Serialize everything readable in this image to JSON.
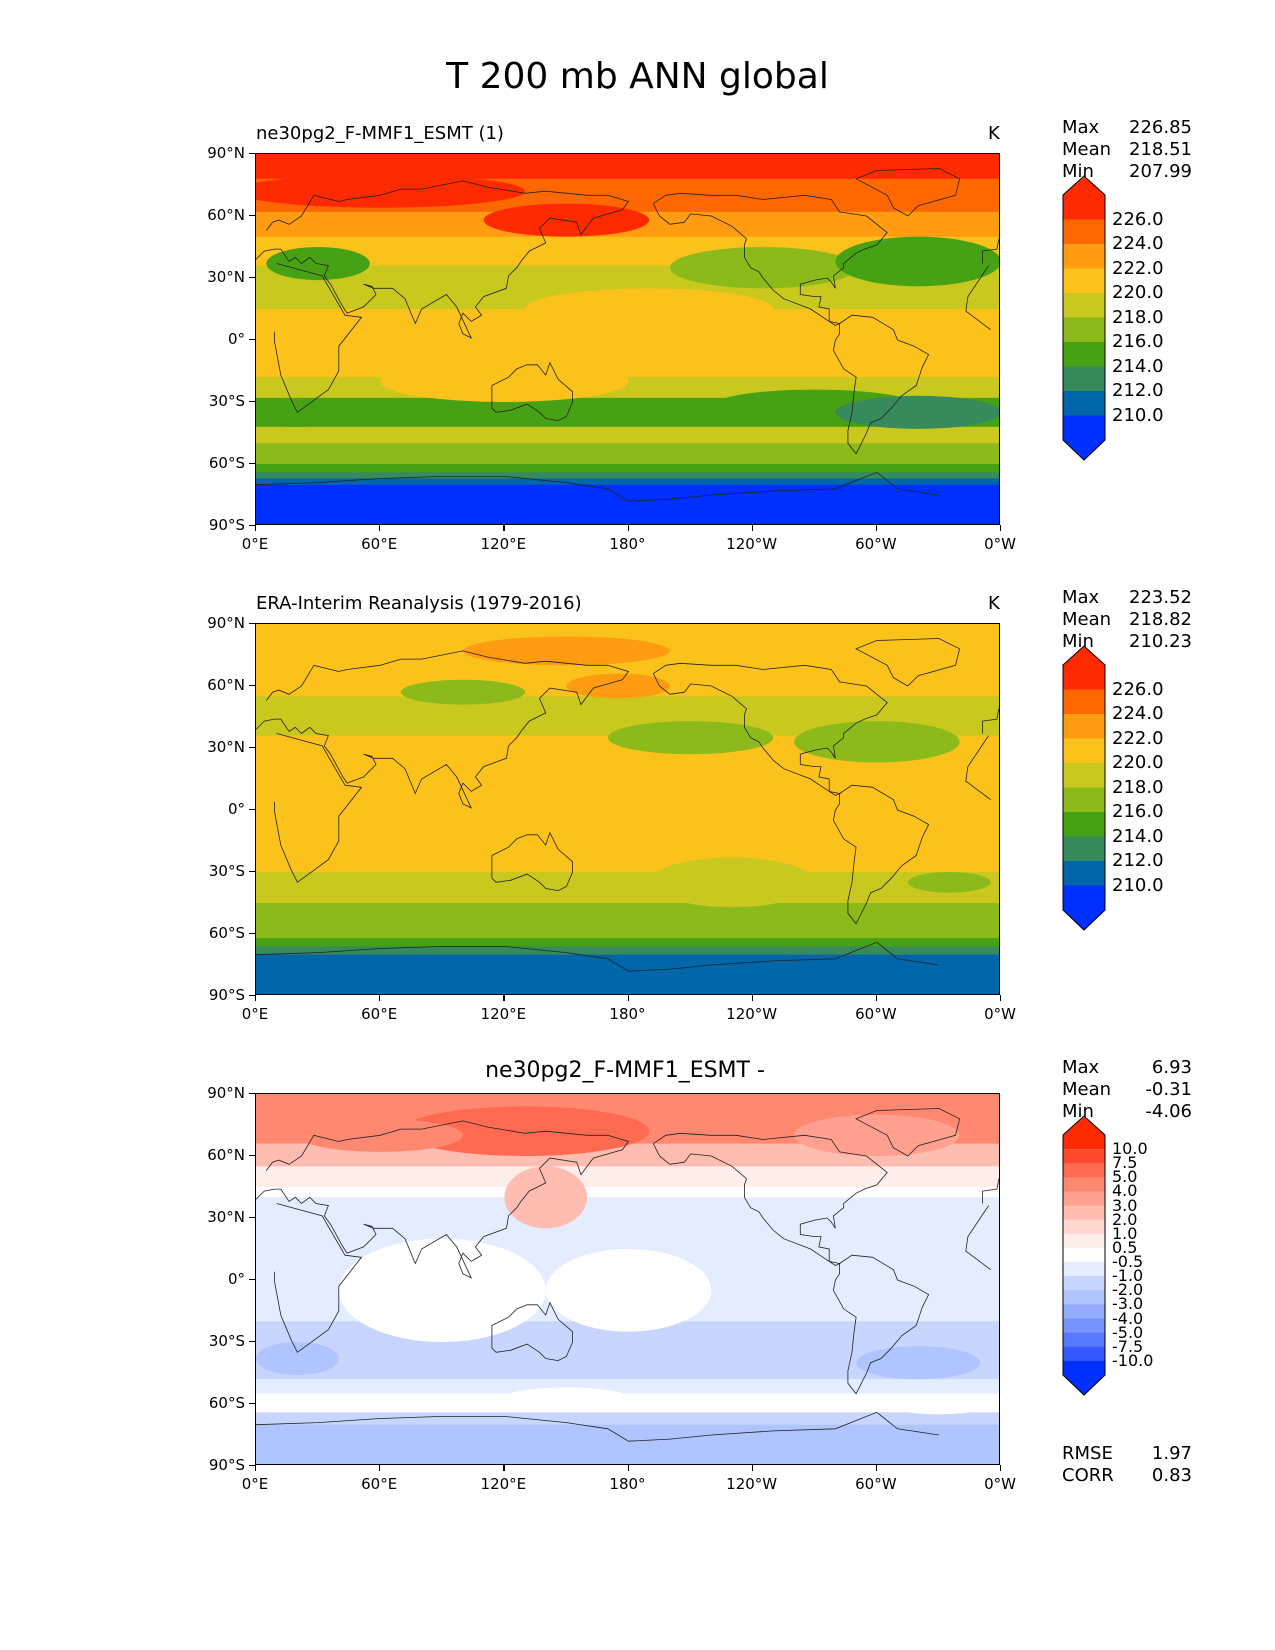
{
  "figure_title": "T 200 mb ANN global",
  "axes": {
    "lat_ticks": [
      "90°N",
      "60°N",
      "30°N",
      "0°",
      "30°S",
      "60°S",
      "90°S"
    ],
    "lon_ticks": [
      "0°E",
      "60°E",
      "120°E",
      "180°",
      "120°W",
      "60°W",
      "0°W"
    ]
  },
  "panels": [
    {
      "title": "ne30pg2_F-MMF1_ESMT (1)",
      "unit": "K",
      "stats": [
        {
          "label": "Max",
          "value": "226.85"
        },
        {
          "label": "Mean",
          "value": "218.51"
        },
        {
          "label": "Min",
          "value": "207.99"
        }
      ],
      "colorbar": {
        "labels": [
          "226.0",
          "224.0",
          "222.0",
          "220.0",
          "218.0",
          "216.0",
          "214.0",
          "212.0",
          "210.0"
        ],
        "colors": [
          "#ff2a00",
          "#ff6800",
          "#ff9c12",
          "#fcc21c",
          "#c8c81e",
          "#8cba1a",
          "#46a214",
          "#368a5c",
          "#0066aa",
          "#0030ff"
        ]
      }
    },
    {
      "title": "ERA-Interim Reanalysis (1979-2016)",
      "unit": "K",
      "stats": [
        {
          "label": "Max",
          "value": "223.52"
        },
        {
          "label": "Mean",
          "value": "218.82"
        },
        {
          "label": "Min",
          "value": "210.23"
        }
      ],
      "colorbar": {
        "labels": [
          "226.0",
          "224.0",
          "222.0",
          "220.0",
          "218.0",
          "216.0",
          "214.0",
          "212.0",
          "210.0"
        ],
        "colors": [
          "#ff2a00",
          "#ff6800",
          "#ff9c12",
          "#fcc21c",
          "#c8c81e",
          "#8cba1a",
          "#46a214",
          "#368a5c",
          "#0066aa",
          "#0030ff"
        ]
      }
    },
    {
      "title": "ne30pg2_F-MMF1_ESMT -",
      "unit": "",
      "stats": [
        {
          "label": "Max",
          "value": "6.93"
        },
        {
          "label": "Mean",
          "value": "-0.31"
        },
        {
          "label": "Min",
          "value": "-4.06"
        }
      ],
      "colorbar": {
        "labels": [
          "10.0",
          "7.5",
          "5.0",
          "4.0",
          "3.0",
          "2.0",
          "1.0",
          "0.5",
          "-0.5",
          "-1.0",
          "-2.0",
          "-3.0",
          "-4.0",
          "-5.0",
          "-7.5",
          "-10.0"
        ],
        "colors": [
          "#ff2a00",
          "#ff4a2e",
          "#ff6a50",
          "#ff8870",
          "#ffa090",
          "#ffbcb0",
          "#ffd6d0",
          "#ffeeea",
          "#ffffff",
          "#e4ecff",
          "#c8d6ff",
          "#b0c4ff",
          "#94acff",
          "#7894ff",
          "#5878ff",
          "#3858ff",
          "#0030ff"
        ]
      },
      "extra_stats": [
        {
          "label": "RMSE",
          "value": "1.97"
        },
        {
          "label": "CORR",
          "value": "0.83"
        }
      ]
    }
  ]
}
